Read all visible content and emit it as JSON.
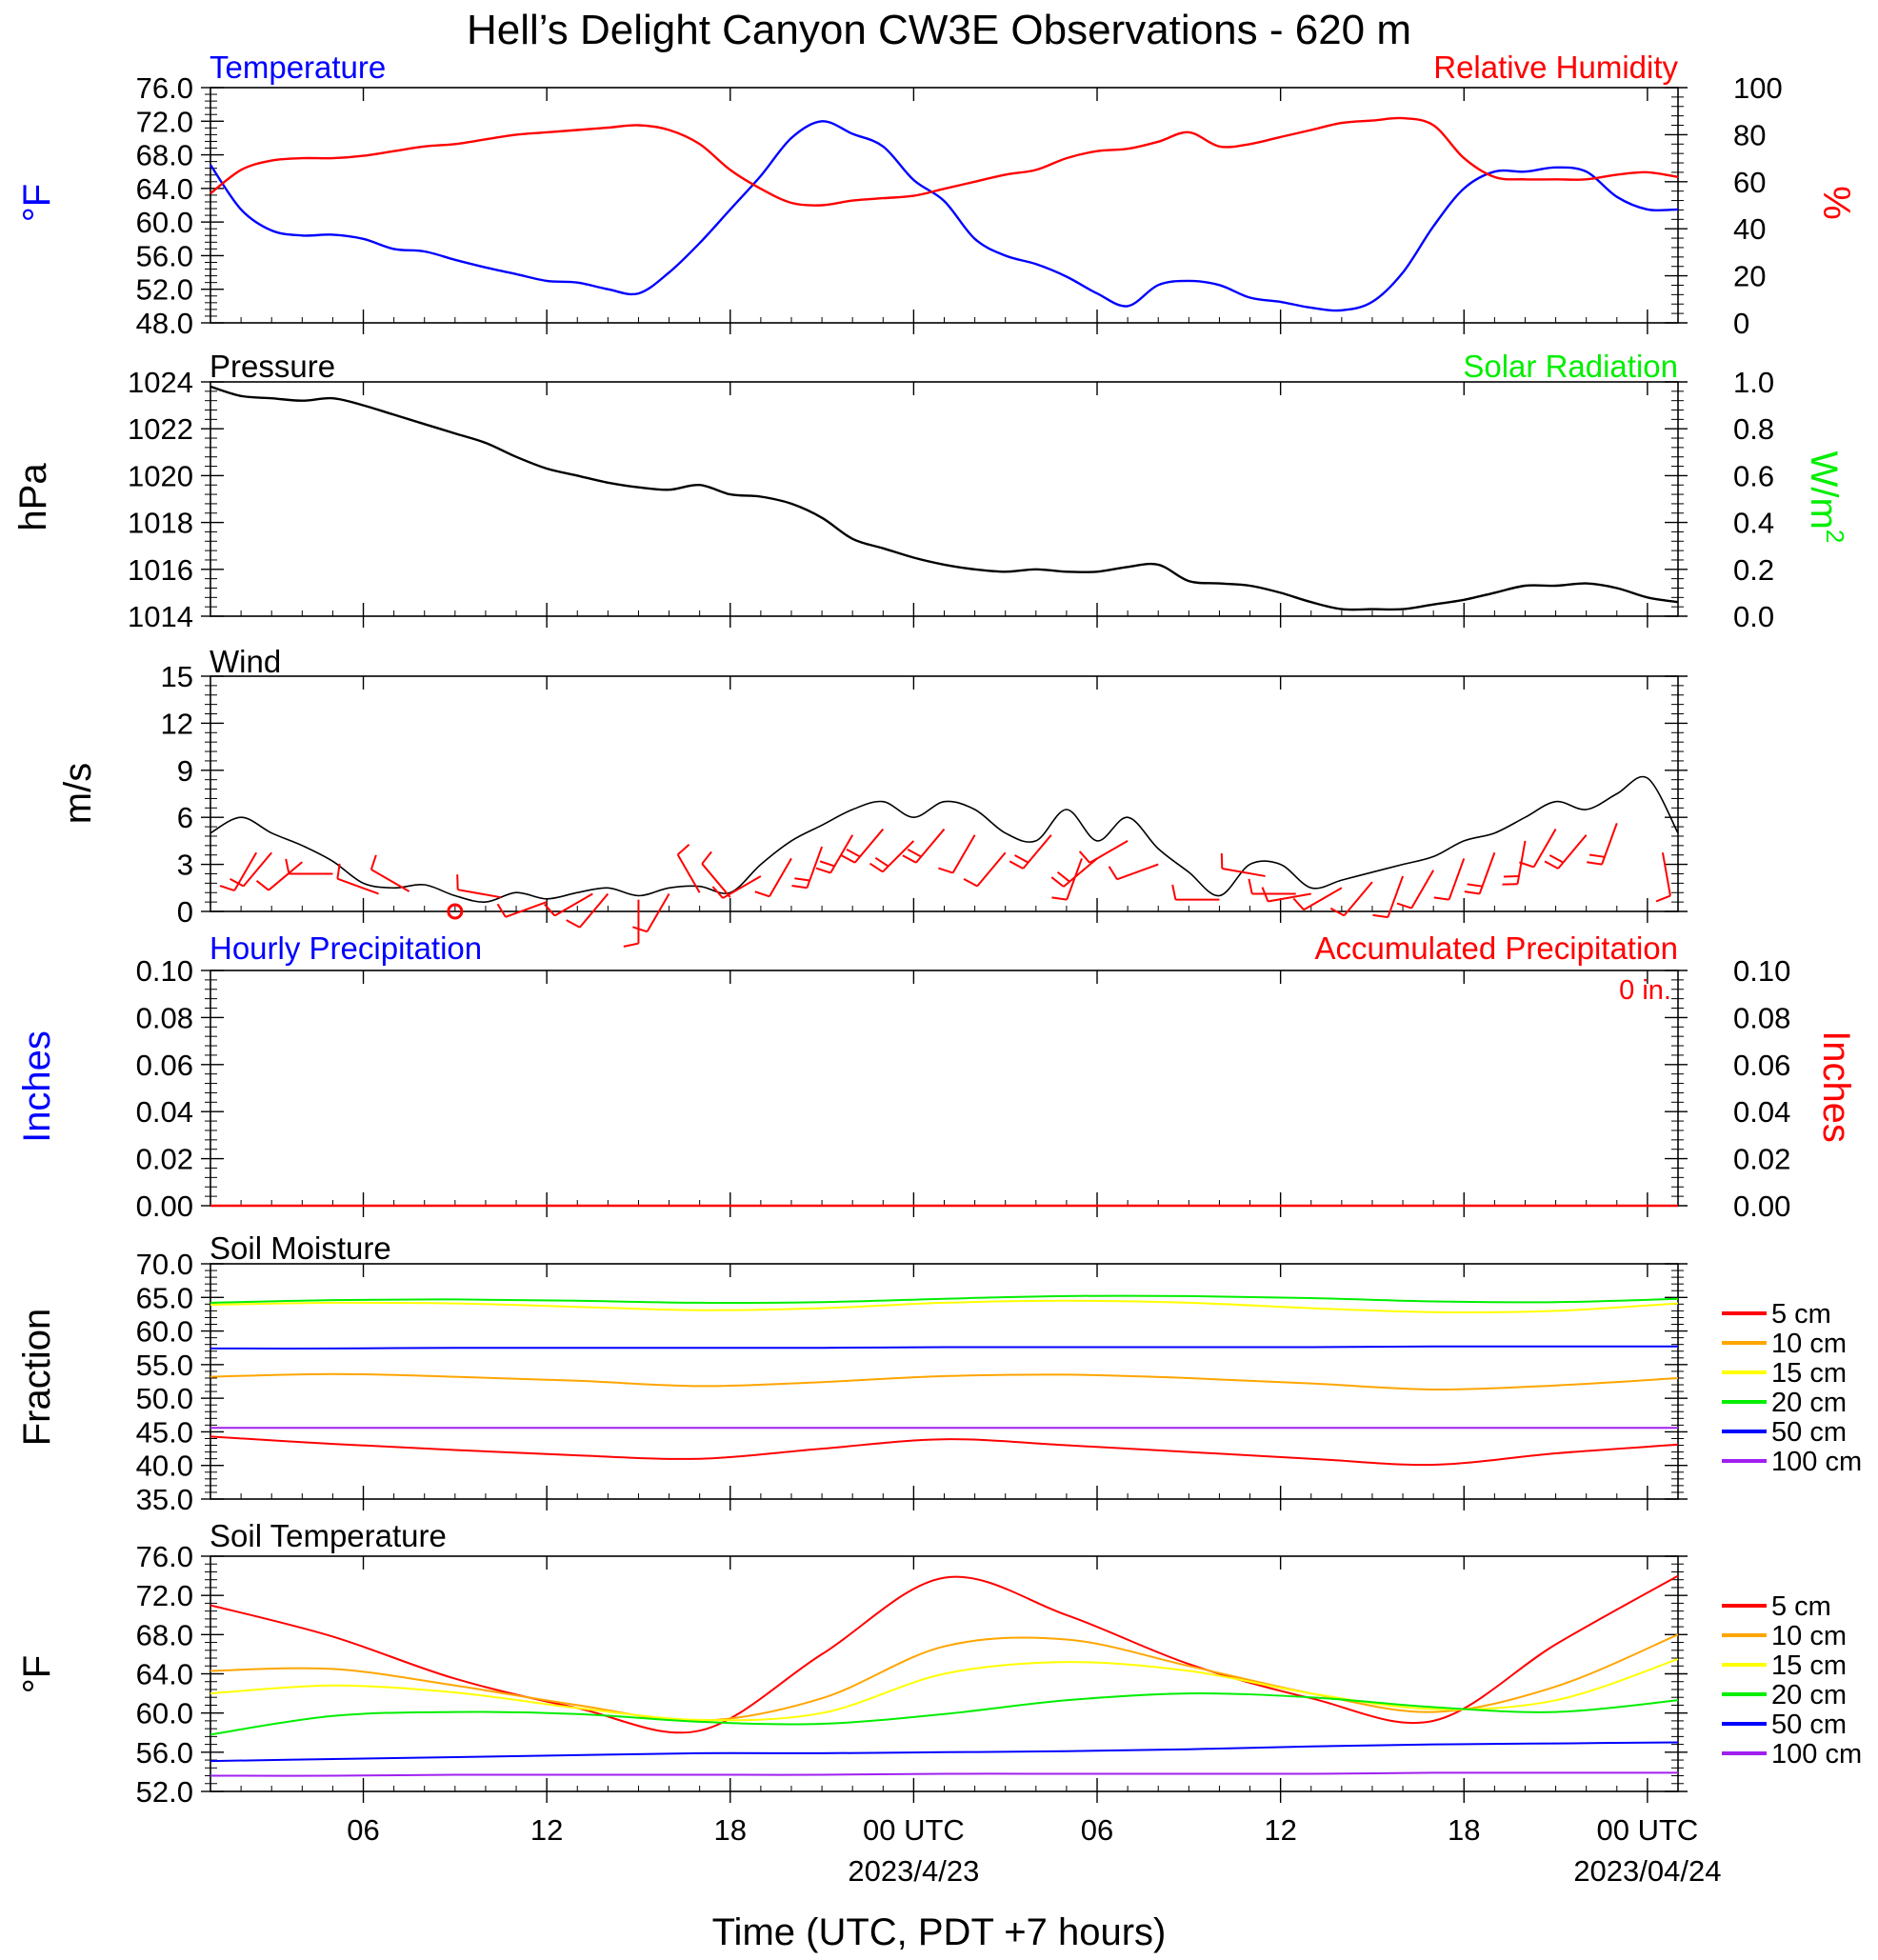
{
  "title": "Hell’s Delight Canyon CW3E Observations - 620 m",
  "colors": {
    "temperature": "#0000ff",
    "humidity": "#ff0000",
    "pressure": "#000000",
    "solar": "#00ee00",
    "wind_speed": "#000000",
    "wind_barb": "#ff0000",
    "hourly_precip": "#0000ff",
    "accum_precip": "#ff0000",
    "soil_levels": [
      "#ff0000",
      "#ffa500",
      "#ffff00",
      "#00ee00",
      "#0000ff",
      "#a020f0"
    ]
  },
  "x_axis": {
    "title": "Time (UTC, PDT +7 hours)",
    "range_hours": [
      0,
      48
    ],
    "tick_hours": [
      5,
      11,
      17,
      23,
      29,
      35,
      41,
      47
    ],
    "tick_labels": [
      "06",
      "12",
      "18",
      "00 UTC",
      "06",
      "12",
      "18",
      "00 UTC"
    ],
    "date_labels": [
      {
        "at_hour": 23,
        "text": "2023/4/23"
      },
      {
        "at_hour": 47,
        "text": "2023/04/24"
      }
    ]
  },
  "chart_data": [
    {
      "type": "line",
      "id": "temp_rh",
      "title_left": "Temperature",
      "title_right": "Relative Humidity",
      "ylabel_left": "°F",
      "ylabel_right": "%",
      "ylim_left": [
        48,
        76
      ],
      "ylim_right": [
        0,
        100
      ],
      "yticks_left": [
        "48.0",
        "52.0",
        "56.0",
        "60.0",
        "64.0",
        "68.0",
        "72.0",
        "76.0"
      ],
      "yticks_right": [
        "0",
        "20",
        "40",
        "60",
        "80",
        "100"
      ],
      "series": [
        {
          "axis": "left",
          "color_key": "temperature",
          "x": [
            0,
            1,
            2,
            3,
            4,
            5,
            6,
            7,
            8,
            9,
            10,
            11,
            12,
            13,
            14,
            15,
            16,
            17,
            18,
            19,
            20,
            21,
            22,
            23,
            24,
            25,
            26,
            27,
            28,
            29,
            30,
            31,
            32,
            33,
            34,
            35,
            36,
            37,
            38,
            39,
            40,
            41,
            42,
            43,
            44,
            45,
            46,
            47,
            48
          ],
          "y": [
            66.8,
            61.5,
            59.0,
            58.4,
            58.5,
            58.0,
            56.8,
            56.5,
            55.5,
            54.6,
            53.8,
            53.0,
            52.8,
            52.0,
            51.5,
            54.0,
            57.5,
            61.5,
            65.5,
            70.0,
            72.0,
            70.5,
            69.0,
            65.0,
            62.5,
            58.0,
            56.0,
            55.0,
            53.5,
            51.5,
            50.0,
            52.5,
            53.0,
            52.5,
            51.0,
            50.5,
            49.8,
            49.5,
            50.5,
            54.0,
            59.5,
            64.0,
            66.0,
            66.0,
            66.5,
            66.0,
            63.0,
            61.5,
            61.5
          ]
        },
        {
          "axis": "right",
          "color_key": "humidity",
          "x": [
            0,
            1,
            2,
            3,
            4,
            5,
            6,
            7,
            8,
            9,
            10,
            11,
            12,
            13,
            14,
            15,
            16,
            17,
            18,
            19,
            20,
            21,
            22,
            23,
            24,
            25,
            26,
            27,
            28,
            29,
            30,
            31,
            32,
            33,
            34,
            35,
            36,
            37,
            38,
            39,
            40,
            41,
            42,
            43,
            44,
            45,
            46,
            47,
            48
          ],
          "y": [
            55,
            65,
            69,
            70,
            70,
            71,
            73,
            75,
            76,
            78,
            80,
            81,
            82,
            83,
            84,
            82,
            76,
            65,
            57,
            51,
            50,
            52,
            53,
            54,
            57,
            60,
            63,
            65,
            70,
            73,
            74,
            77,
            81,
            75,
            76,
            79,
            82,
            85,
            86,
            87,
            84,
            70,
            62,
            61,
            61,
            61,
            63,
            64,
            62
          ]
        }
      ]
    },
    {
      "type": "line",
      "id": "pressure_solar",
      "title_left": "Pressure",
      "title_right": "Solar Radiation",
      "ylabel_left": "hPa",
      "ylabel_right": "W/m",
      "ylabel_right_sup": "2",
      "ylim_left": [
        1014,
        1024
      ],
      "ylim_right": [
        0,
        1
      ],
      "yticks_left": [
        "1014",
        "1016",
        "1018",
        "1020",
        "1022",
        "1024"
      ],
      "yticks_right": [
        "0.0",
        "0.2",
        "0.4",
        "0.6",
        "0.8",
        "1.0"
      ],
      "series": [
        {
          "axis": "left",
          "color_key": "pressure",
          "x": [
            0,
            1,
            2,
            3,
            4,
            5,
            6,
            7,
            8,
            9,
            10,
            11,
            12,
            13,
            14,
            15,
            16,
            17,
            18,
            19,
            20,
            21,
            22,
            23,
            24,
            25,
            26,
            27,
            28,
            29,
            30,
            31,
            32,
            33,
            34,
            35,
            36,
            37,
            38,
            39,
            40,
            41,
            42,
            43,
            44,
            45,
            46,
            47,
            48
          ],
          "y": [
            1023.8,
            1023.4,
            1023.3,
            1023.2,
            1023.3,
            1023.0,
            1022.6,
            1022.2,
            1021.8,
            1021.4,
            1020.8,
            1020.3,
            1020.0,
            1019.7,
            1019.5,
            1019.4,
            1019.6,
            1019.2,
            1019.1,
            1018.8,
            1018.2,
            1017.3,
            1016.9,
            1016.5,
            1016.2,
            1016.0,
            1015.9,
            1016.0,
            1015.9,
            1015.9,
            1016.1,
            1016.2,
            1015.5,
            1015.4,
            1015.3,
            1015.0,
            1014.6,
            1014.3,
            1014.3,
            1014.3,
            1014.5,
            1014.7,
            1015.0,
            1015.3,
            1015.3,
            1015.4,
            1015.2,
            1014.8,
            1014.6
          ]
        }
      ]
    },
    {
      "type": "line",
      "id": "wind",
      "title_left": "Wind",
      "ylabel_left": "m/s",
      "ylim_left": [
        0,
        15
      ],
      "yticks_left": [
        "0",
        "3",
        "6",
        "9",
        "12",
        "15"
      ],
      "series": [
        {
          "axis": "left",
          "color_key": "wind_speed",
          "x": [
            0,
            1,
            2,
            3,
            4,
            5,
            6,
            7,
            8,
            9,
            10,
            11,
            12,
            13,
            14,
            15,
            16,
            17,
            18,
            19,
            20,
            21,
            22,
            23,
            24,
            25,
            26,
            27,
            28,
            29,
            30,
            31,
            32,
            33,
            34,
            35,
            36,
            37,
            38,
            39,
            40,
            41,
            42,
            43,
            44,
            45,
            46,
            47,
            48
          ],
          "y": [
            5.0,
            6.0,
            5.0,
            4.2,
            3.2,
            1.8,
            1.5,
            1.7,
            1.0,
            0.6,
            1.2,
            0.8,
            1.2,
            1.5,
            1.0,
            1.5,
            1.6,
            1.2,
            3.0,
            4.5,
            5.5,
            6.5,
            7.0,
            6.0,
            7.0,
            6.5,
            5.0,
            4.5,
            6.5,
            4.5,
            6.0,
            4.0,
            2.5,
            1.0,
            3.0,
            3.0,
            1.5,
            2.0,
            2.5,
            3.0,
            3.5,
            4.5,
            5.0,
            6.0,
            7.0,
            6.5,
            7.5,
            8.5,
            5.0
          ]
        }
      ],
      "barbs": {
        "color_key": "wind_barb",
        "x": [
          1.5,
          2,
          3,
          4,
          5.5,
          6.5,
          8,
          9.5,
          11,
          12.5,
          13,
          14,
          15,
          16,
          17,
          18,
          19,
          20,
          21,
          22,
          23,
          24,
          25,
          26,
          27.5,
          28.5,
          29,
          30,
          31,
          33,
          34.5,
          35.5,
          36,
          37,
          38,
          39,
          40,
          41,
          42,
          43,
          44,
          45,
          46,
          47.5
        ],
        "speed": [
          2,
          2,
          2,
          3,
          2,
          2,
          0,
          2,
          2,
          2,
          2,
          3,
          2,
          3,
          2,
          3,
          3,
          4,
          5,
          5,
          5,
          5,
          3,
          2,
          4,
          3,
          4,
          3,
          3,
          2,
          2,
          2,
          2,
          2,
          2,
          2,
          3,
          3,
          4,
          4,
          3,
          4,
          4,
          3
        ],
        "dir": [
          210,
          220,
          230,
          270,
          290,
          300,
          0,
          280,
          250,
          240,
          220,
          180,
          210,
          330,
          320,
          240,
          210,
          200,
          210,
          220,
          225,
          220,
          210,
          220,
          220,
          200,
          230,
          240,
          250,
          270,
          280,
          270,
          260,
          240,
          220,
          200,
          210,
          200,
          200,
          190,
          210,
          220,
          200,
          170
        ]
      },
      "calm_marker_hour": 8
    },
    {
      "type": "bar",
      "id": "precip",
      "title_left": "Hourly Precipitation",
      "title_right": "Accumulated Precipitation",
      "ylabel_left": "Inches",
      "ylabel_right": "Inches",
      "ylim_left": [
        0,
        0.1
      ],
      "ylim_right": [
        0,
        0.1
      ],
      "yticks_left": [
        "0.00",
        "0.02",
        "0.04",
        "0.06",
        "0.08",
        "0.10"
      ],
      "yticks_right": [
        "0.00",
        "0.02",
        "0.04",
        "0.06",
        "0.08",
        "0.10"
      ],
      "annotation": "0 in.",
      "hourly_values": [
        0,
        0,
        0,
        0,
        0,
        0,
        0,
        0,
        0,
        0,
        0,
        0,
        0,
        0,
        0,
        0,
        0,
        0,
        0,
        0,
        0,
        0,
        0,
        0,
        0,
        0,
        0,
        0,
        0,
        0,
        0,
        0,
        0,
        0,
        0,
        0,
        0,
        0,
        0,
        0,
        0,
        0,
        0,
        0,
        0,
        0,
        0,
        0
      ],
      "accumulated": {
        "x": [
          0,
          48
        ],
        "y": [
          0,
          0
        ]
      }
    },
    {
      "type": "line",
      "id": "soil_moisture",
      "title_left": "Soil Moisture",
      "ylabel_left": "Fraction",
      "ylim_left": [
        35,
        70
      ],
      "yticks_left": [
        "35.0",
        "40.0",
        "45.0",
        "50.0",
        "55.0",
        "60.0",
        "65.0",
        "70.0"
      ],
      "x": [
        0,
        4,
        8,
        12,
        16,
        20,
        24,
        28,
        32,
        36,
        40,
        44,
        48
      ],
      "series": [
        {
          "name": "5 cm",
          "y": [
            44.3,
            43.2,
            42.3,
            41.5,
            41.0,
            42.5,
            43.9,
            43.0,
            42.0,
            41.0,
            40.1,
            41.8,
            43.1
          ]
        },
        {
          "name": "10 cm",
          "y": [
            53.2,
            53.6,
            53.2,
            52.6,
            51.8,
            52.4,
            53.3,
            53.5,
            53.0,
            52.2,
            51.3,
            51.9,
            53.0
          ]
        },
        {
          "name": "15 cm",
          "y": [
            63.9,
            64.2,
            64.1,
            63.6,
            63.1,
            63.4,
            64.2,
            64.5,
            64.2,
            63.4,
            62.8,
            63.0,
            64.1
          ]
        },
        {
          "name": "20 cm",
          "y": [
            64.2,
            64.6,
            64.7,
            64.5,
            64.2,
            64.3,
            64.8,
            65.2,
            65.2,
            64.9,
            64.4,
            64.3,
            64.8
          ]
        },
        {
          "name": "50 cm",
          "y": [
            57.4,
            57.4,
            57.5,
            57.5,
            57.5,
            57.5,
            57.6,
            57.6,
            57.6,
            57.6,
            57.7,
            57.7,
            57.7
          ]
        },
        {
          "name": "100 cm",
          "y": [
            45.6,
            45.6,
            45.6,
            45.6,
            45.6,
            45.6,
            45.6,
            45.6,
            45.6,
            45.6,
            45.6,
            45.6,
            45.6
          ]
        }
      ]
    },
    {
      "type": "line",
      "id": "soil_temperature",
      "title_left": "Soil Temperature",
      "ylabel_left": "°F",
      "ylim_left": [
        52,
        76
      ],
      "yticks_left": [
        "52.0",
        "56.0",
        "60.0",
        "64.0",
        "68.0",
        "72.0",
        "76.0"
      ],
      "x": [
        0,
        4,
        8,
        12,
        16,
        20,
        24,
        28,
        32,
        36,
        40,
        44,
        48
      ],
      "series": [
        {
          "name": "5 cm",
          "y": [
            71.0,
            67.8,
            63.5,
            60.5,
            58.2,
            66.0,
            73.8,
            70.0,
            65.0,
            61.5,
            59.2,
            67.0,
            74.0
          ]
        },
        {
          "name": "10 cm",
          "y": [
            64.3,
            64.5,
            62.8,
            60.8,
            59.2,
            61.5,
            66.8,
            67.5,
            64.8,
            62.0,
            60.1,
            62.7,
            68.0
          ]
        },
        {
          "name": "15 cm",
          "y": [
            62.0,
            62.8,
            62.1,
            60.5,
            59.3,
            60.0,
            64.0,
            65.2,
            64.3,
            62.0,
            60.4,
            61.3,
            65.5
          ]
        },
        {
          "name": "20 cm",
          "y": [
            57.8,
            59.7,
            60.1,
            59.9,
            59.1,
            58.9,
            59.9,
            61.3,
            62.0,
            61.6,
            60.6,
            60.1,
            61.3
          ]
        },
        {
          "name": "50 cm",
          "y": [
            55.1,
            55.3,
            55.5,
            55.7,
            55.9,
            55.9,
            56.0,
            56.1,
            56.3,
            56.6,
            56.8,
            56.9,
            57.0
          ]
        },
        {
          "name": "100 cm",
          "y": [
            53.6,
            53.6,
            53.7,
            53.7,
            53.7,
            53.7,
            53.8,
            53.8,
            53.8,
            53.8,
            53.9,
            53.9,
            53.9
          ]
        }
      ]
    }
  ]
}
